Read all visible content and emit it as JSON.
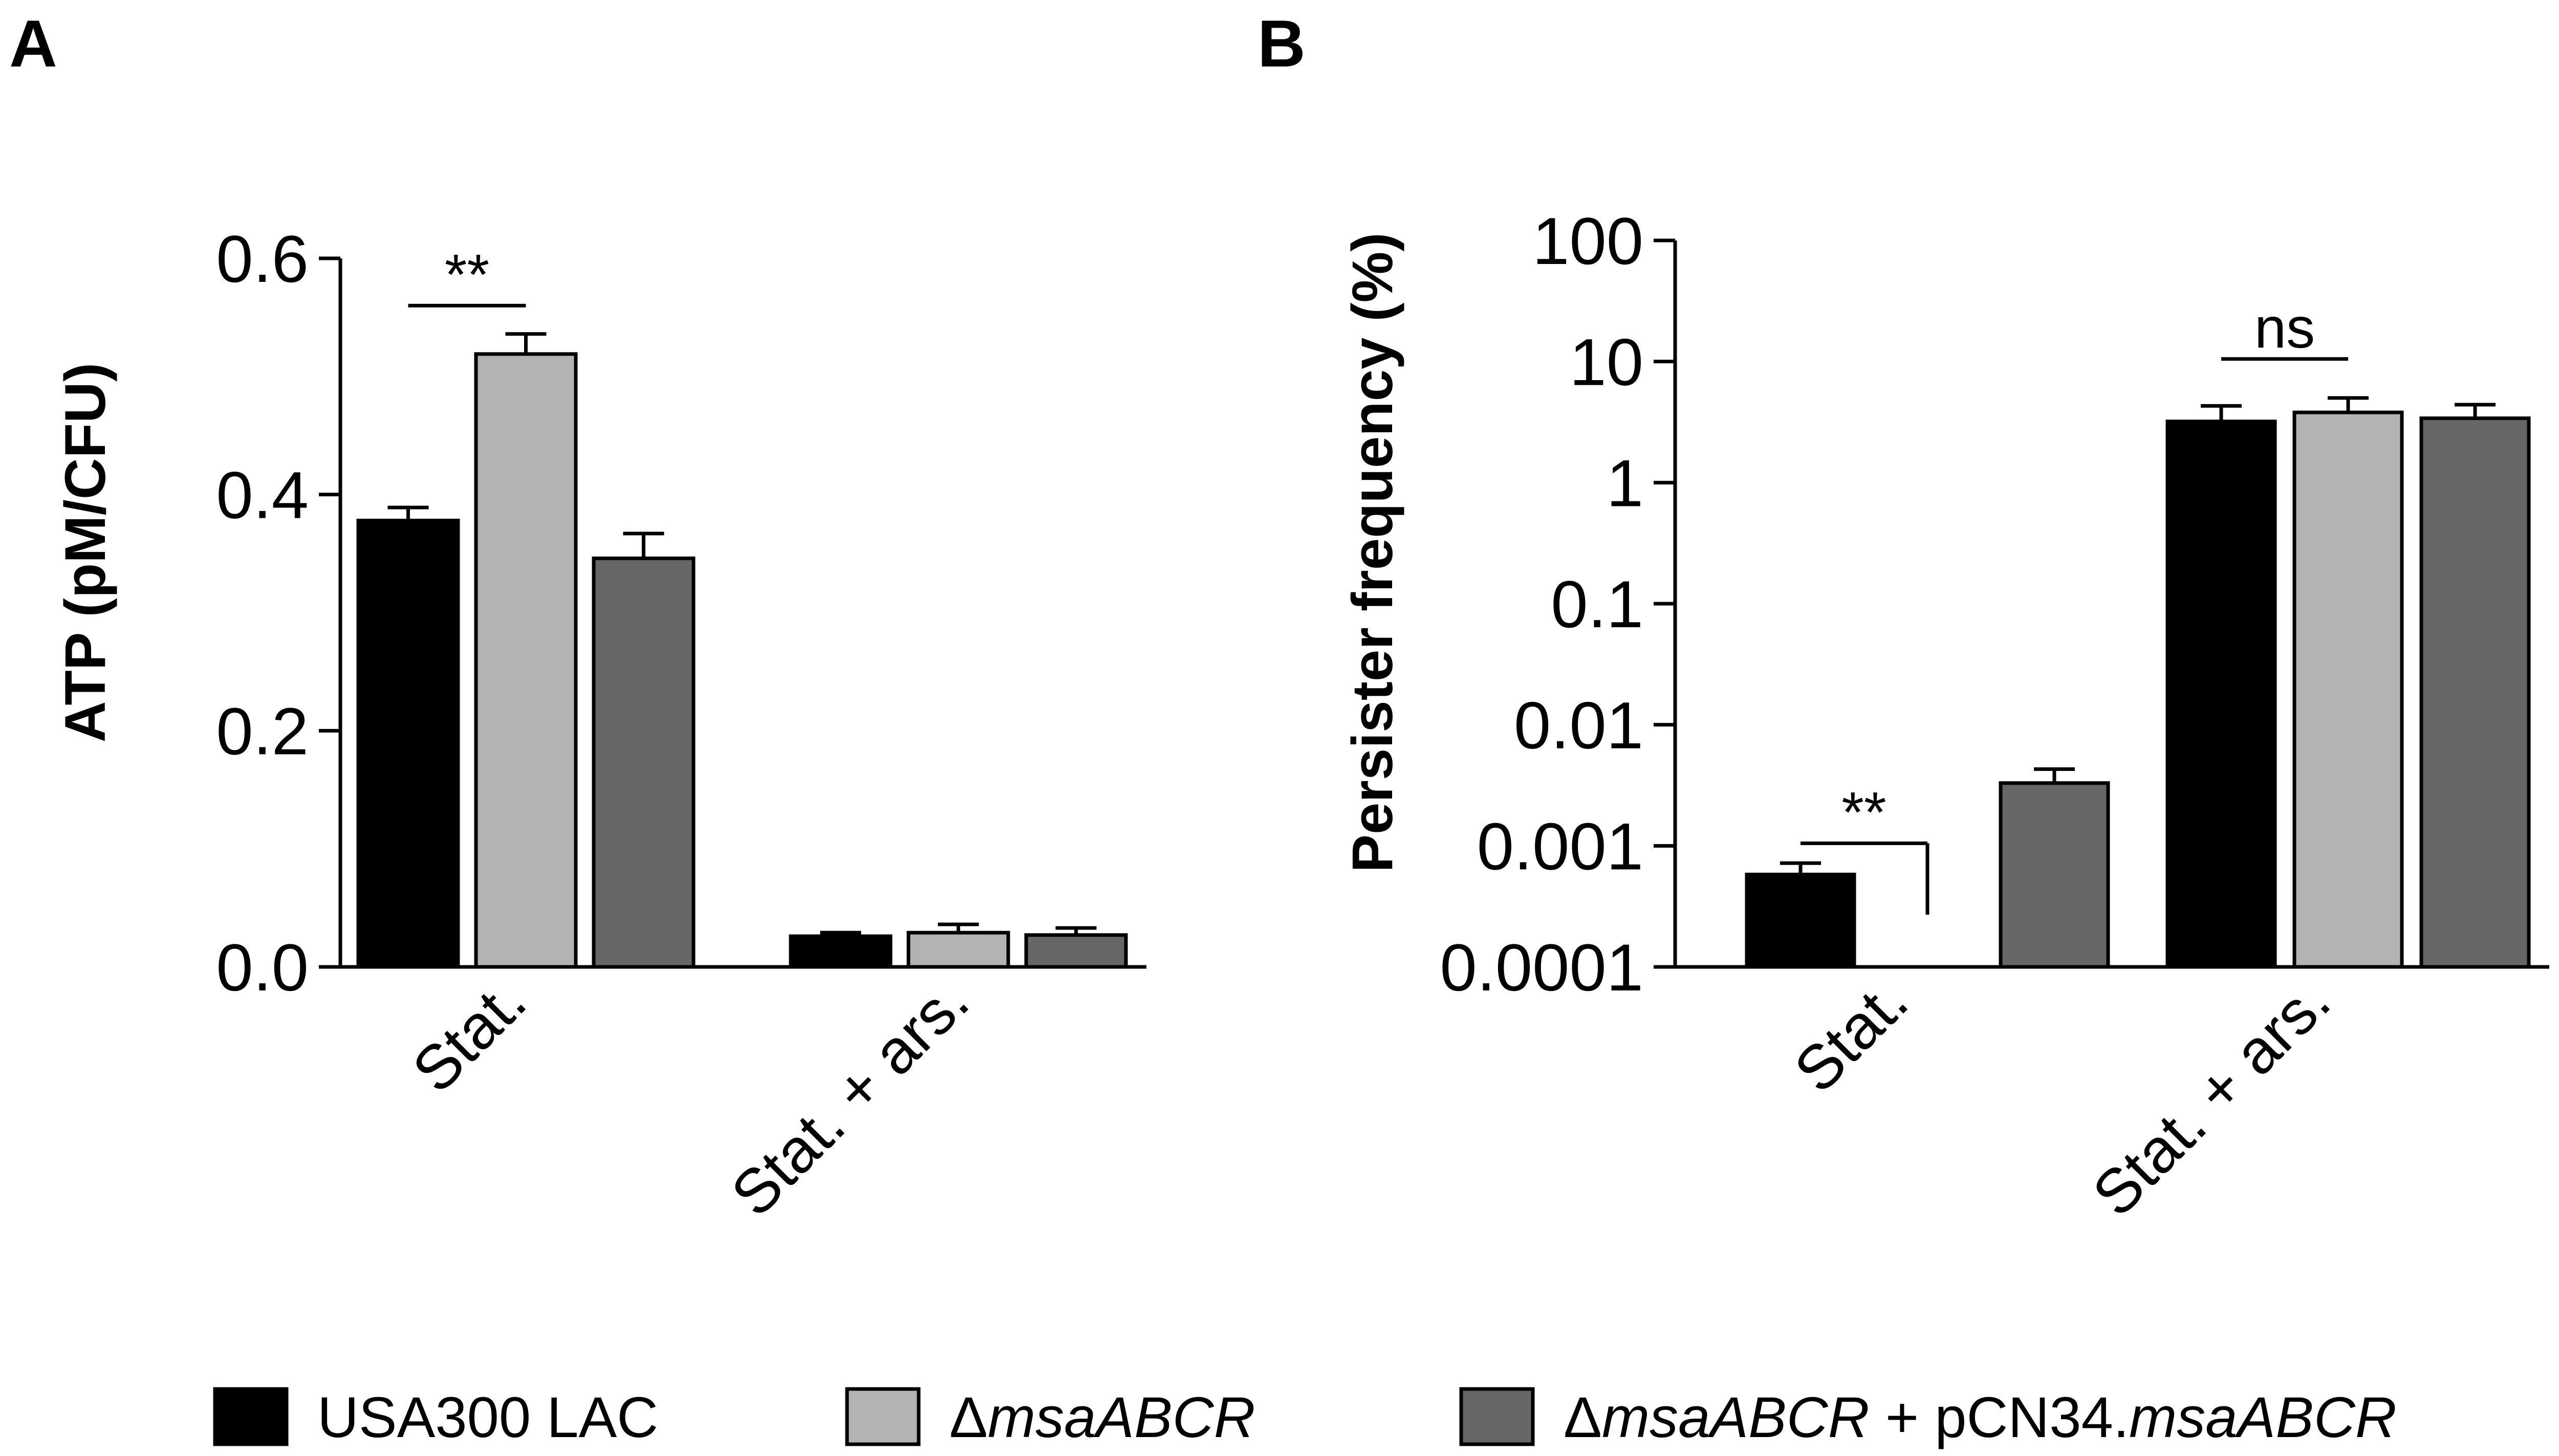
{
  "chart_data": [
    {
      "panel": "A",
      "type": "bar",
      "ylabel": "ATP (pM/CFU)",
      "ylim": [
        0,
        0.6
      ],
      "yticks": [
        0.0,
        0.2,
        0.4,
        0.6
      ],
      "ytick_labels": [
        "0.0",
        "0.2",
        "0.4",
        "0.6"
      ],
      "categories": [
        "Stat.",
        "Stat. + ars."
      ],
      "series": [
        {
          "name": "USA300 LAC",
          "color": "#000000",
          "values": [
            0.378,
            0.026
          ],
          "errors": [
            0.011,
            0.003
          ]
        },
        {
          "name": "ΔmsaABCR",
          "color": "#b3b3b3",
          "values": [
            0.519,
            0.029
          ],
          "errors": [
            0.017,
            0.007
          ]
        },
        {
          "name": "ΔmsaABCR + pCN34.msaABCR",
          "color": "#666666",
          "values": [
            0.346,
            0.027
          ],
          "errors": [
            0.021,
            0.006
          ]
        }
      ],
      "annotations": [
        {
          "text": "**",
          "category": 0,
          "from_series": 0,
          "to_series": 1,
          "y": 0.56
        }
      ]
    },
    {
      "panel": "B",
      "type": "bar",
      "ylabel": "Persister frequency (%)",
      "yscale": "log",
      "ylim": [
        0.0001,
        100
      ],
      "yticks": [
        0.0001,
        0.001,
        0.01,
        0.1,
        1,
        10,
        100
      ],
      "ytick_labels": [
        "0.0001",
        "0.001",
        "0.01",
        "0.1",
        "1",
        "10",
        "100"
      ],
      "categories": [
        "Stat.",
        "Stat. + ars."
      ],
      "series": [
        {
          "name": "USA300 LAC",
          "color": "#000000",
          "values": [
            0.00058,
            3.2
          ],
          "error_top": [
            0.00072,
            4.3
          ]
        },
        {
          "name": "ΔmsaABCR",
          "color": "#b3b3b3",
          "values": [
            null,
            3.8
          ],
          "error_top": [
            null,
            5.0
          ]
        },
        {
          "name": "ΔmsaABCR + pCN34.msaABCR",
          "color": "#666666",
          "values": [
            0.0033,
            3.4
          ],
          "error_top": [
            0.0043,
            4.4
          ]
        }
      ],
      "annotations": [
        {
          "text": "**",
          "category": 0,
          "from_series": 0,
          "to_series": 1,
          "y": 0.00105,
          "bracket_drop_to": 0.00027
        },
        {
          "text": "ns",
          "category": 1,
          "from_series": 0,
          "to_series": 1,
          "y": 10.5
        }
      ]
    }
  ],
  "legend": {
    "placement": "bottom",
    "items": [
      {
        "color": "#000000",
        "label_parts": [
          {
            "text": "USA300 LAC",
            "italic": false
          }
        ]
      },
      {
        "color": "#b3b3b3",
        "label_parts": [
          {
            "text": "Δ",
            "italic": false
          },
          {
            "text": "msaABCR",
            "italic": true
          }
        ]
      },
      {
        "color": "#666666",
        "label_parts": [
          {
            "text": "Δ",
            "italic": false
          },
          {
            "text": "msaABCR",
            "italic": true
          },
          {
            "text": " + pCN34.",
            "italic": false
          },
          {
            "text": "msaABCR",
            "italic": true
          }
        ]
      }
    ]
  }
}
